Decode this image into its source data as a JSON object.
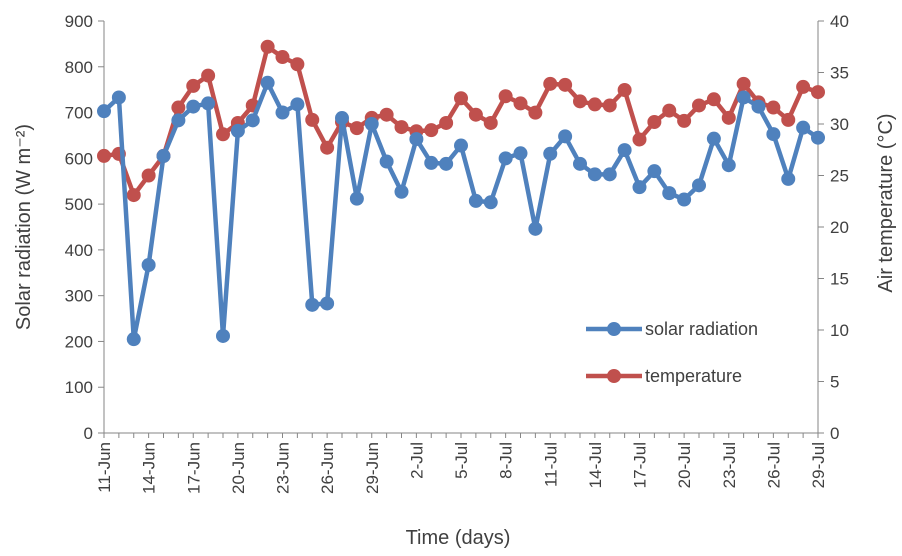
{
  "chart_data": {
    "type": "line",
    "xlabel": "Time (days)",
    "ylabel_left": "Solar radiation (W m⁻²)",
    "ylabel_right": "Air temperature (°C)",
    "ylim_left": [
      0,
      900
    ],
    "yticks_left": [
      0,
      100,
      200,
      300,
      400,
      500,
      600,
      700,
      800,
      900
    ],
    "ylim_right": [
      0,
      40
    ],
    "yticks_right": [
      0,
      5,
      10,
      15,
      20,
      25,
      30,
      35,
      40
    ],
    "grid": false,
    "legend_position": "right",
    "x_tick_labels": [
      "11-Jun",
      "14-Jun",
      "17-Jun",
      "20-Jun",
      "23-Jun",
      "26-Jun",
      "29-Jun",
      "2-Jul",
      "5-Jul",
      "8-Jul",
      "11-Jul",
      "14-Jul",
      "17-Jul",
      "20-Jul",
      "23-Jul",
      "26-Jul",
      "29-Jul"
    ],
    "x": [
      "11-Jun",
      "12-Jun",
      "13-Jun",
      "14-Jun",
      "15-Jun",
      "16-Jun",
      "17-Jun",
      "18-Jun",
      "19-Jun",
      "20-Jun",
      "21-Jun",
      "22-Jun",
      "23-Jun",
      "24-Jun",
      "25-Jun",
      "26-Jun",
      "27-Jun",
      "28-Jun",
      "29-Jun",
      "30-Jun",
      "1-Jul",
      "2-Jul",
      "3-Jul",
      "4-Jul",
      "5-Jul",
      "6-Jul",
      "7-Jul",
      "8-Jul",
      "9-Jul",
      "10-Jul",
      "11-Jul",
      "12-Jul",
      "13-Jul",
      "14-Jul",
      "15-Jul",
      "16-Jul",
      "17-Jul",
      "18-Jul",
      "19-Jul",
      "20-Jul",
      "21-Jul",
      "22-Jul",
      "23-Jul",
      "24-Jul",
      "25-Jul",
      "26-Jul",
      "27-Jul",
      "28-Jul",
      "29-Jul"
    ],
    "series": [
      {
        "name": "solar radiation",
        "axis": "left",
        "color": "#4F81BD",
        "values": [
          703,
          733,
          205,
          367,
          605,
          683,
          713,
          720,
          212,
          660,
          683,
          765,
          700,
          718,
          280,
          283,
          688,
          512,
          675,
          593,
          527,
          642,
          590,
          588,
          628,
          507,
          504,
          600,
          611,
          446,
          610,
          648,
          588,
          565,
          565,
          618,
          537,
          572,
          524,
          510,
          541,
          643,
          585,
          733,
          713,
          653,
          555,
          667,
          645
        ]
      },
      {
        "name": "temperature",
        "axis": "right",
        "color": "#C0504D",
        "values": [
          26.9,
          27.1,
          23.1,
          25.0,
          26.9,
          31.6,
          33.7,
          34.7,
          29.0,
          30.1,
          31.8,
          37.5,
          36.5,
          35.8,
          30.4,
          27.7,
          30.2,
          29.6,
          30.6,
          30.9,
          29.7,
          29.3,
          29.4,
          30.1,
          32.5,
          30.9,
          30.1,
          32.7,
          32.0,
          31.1,
          33.9,
          33.8,
          32.2,
          31.9,
          31.8,
          33.3,
          28.5,
          30.2,
          31.3,
          30.3,
          31.8,
          32.4,
          30.6,
          33.9,
          32.1,
          31.6,
          30.4,
          33.6,
          33.1
        ]
      }
    ]
  }
}
